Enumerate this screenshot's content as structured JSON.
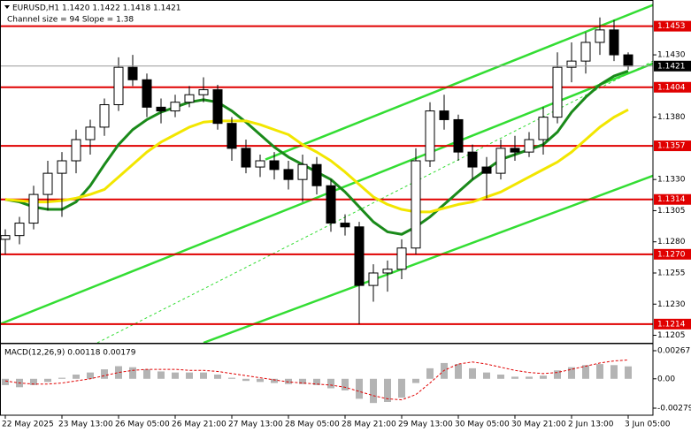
{
  "chart_data": {
    "type": "candlestick",
    "title": "EURUSD,H1  1.1420 1.1422 1.1418 1.1421",
    "subtitle": "Channel size = 94 Slope = 1.38",
    "xlim": [
      -0.375,
      45.75
    ],
    "ylim": [
      1.1199,
      1.1474
    ],
    "xticks": [
      {
        "value": 0,
        "label": "22 May 2025"
      },
      {
        "value": 4,
        "label": "23 May 13:00"
      },
      {
        "value": 8,
        "label": "26 May 05:00"
      },
      {
        "value": 12,
        "label": "26 May 21:00"
      },
      {
        "value": 16,
        "label": "27 May 13:00"
      },
      {
        "value": 20,
        "label": "28 May 05:00"
      },
      {
        "value": 24,
        "label": "28 May 21:00"
      },
      {
        "value": 28,
        "label": "29 May 13:00"
      },
      {
        "value": 32,
        "label": "30 May 05:00"
      },
      {
        "value": 36,
        "label": "30 May 21:00"
      },
      {
        "value": 40,
        "label": "2 Jun 13:00"
      },
      {
        "value": 44,
        "label": "3 Jun 05:00"
      }
    ],
    "yticks": [
      {
        "value": 1.143,
        "label": "1.1430"
      },
      {
        "value": 1.138,
        "label": "1.1380"
      },
      {
        "value": 1.133,
        "label": "1.1330"
      },
      1.1305,
      {
        "value": 1.128,
        "label": "1.1280"
      },
      1.1255,
      {
        "value": 1.123,
        "label": "1.1230"
      },
      1.1205
    ],
    "levels": [
      1.1453,
      1.1404,
      1.1357,
      1.1314,
      {
        "value": 1.127,
        "label": "1.1270"
      },
      1.1214
    ],
    "level_color": "#e00000",
    "current_price": 1.1421,
    "up_color": "#ffffff",
    "down_color": "#000000",
    "candles": {
      "open": [
        1.1282,
        1.1285,
        1.1295,
        1.1318,
        1.1335,
        1.1345,
        1.1362,
        1.1372,
        1.139,
        1.142,
        1.141,
        1.1388,
        1.1385,
        1.1392,
        1.1398,
        1.1402,
        1.1375,
        1.1355,
        1.134,
        1.1345,
        1.1338,
        1.133,
        1.1342,
        1.1325,
        1.1295,
        1.1292,
        1.1245,
        1.1255,
        1.1258,
        1.1275,
        1.1345,
        1.1385,
        1.1378,
        1.1352,
        1.134,
        1.1335,
        1.1355,
        1.1352,
        1.1362,
        1.138,
        1.142,
        1.1425,
        1.144,
        1.145,
        1.143
      ],
      "high": [
        1.129,
        1.13,
        1.1325,
        1.1345,
        1.1352,
        1.137,
        1.1378,
        1.1395,
        1.1428,
        1.143,
        1.1415,
        1.1395,
        1.1398,
        1.1405,
        1.1412,
        1.1406,
        1.138,
        1.1362,
        1.135,
        1.1352,
        1.1345,
        1.135,
        1.1348,
        1.133,
        1.1302,
        1.1296,
        1.1262,
        1.1265,
        1.1282,
        1.1355,
        1.1392,
        1.1398,
        1.1382,
        1.1358,
        1.1348,
        1.1362,
        1.1365,
        1.1368,
        1.1388,
        1.1432,
        1.144,
        1.1448,
        1.146,
        1.1458,
        1.1432
      ],
      "low": [
        1.127,
        1.1278,
        1.129,
        1.1305,
        1.13,
        1.1335,
        1.135,
        1.1365,
        1.1385,
        1.1405,
        1.138,
        1.1375,
        1.138,
        1.1388,
        1.1392,
        1.137,
        1.1345,
        1.1335,
        1.1332,
        1.133,
        1.1322,
        1.1312,
        1.1318,
        1.1288,
        1.1285,
        1.1214,
        1.1232,
        1.124,
        1.125,
        1.127,
        1.134,
        1.137,
        1.1345,
        1.133,
        1.1315,
        1.133,
        1.1345,
        1.1348,
        1.135,
        1.1375,
        1.1408,
        1.1415,
        1.143,
        1.1425,
        1.1418
      ],
      "close": [
        1.1285,
        1.1295,
        1.1318,
        1.1335,
        1.1345,
        1.1362,
        1.1372,
        1.139,
        1.142,
        1.141,
        1.1388,
        1.1385,
        1.1392,
        1.1398,
        1.1402,
        1.1375,
        1.1355,
        1.134,
        1.1345,
        1.1338,
        1.133,
        1.1342,
        1.1325,
        1.1295,
        1.1292,
        1.1245,
        1.1255,
        1.1258,
        1.1275,
        1.1345,
        1.1385,
        1.1378,
        1.1352,
        1.134,
        1.1335,
        1.1355,
        1.1352,
        1.1362,
        1.138,
        1.142,
        1.1425,
        1.144,
        1.145,
        1.143,
        1.1421
      ]
    },
    "moving_averages": [
      {
        "color": "#1a8a1a",
        "values": [
          1.1314,
          1.1312,
          1.1308,
          1.1306,
          1.1306,
          1.1312,
          1.1325,
          1.1342,
          1.1358,
          1.137,
          1.1378,
          1.1384,
          1.1388,
          1.1392,
          1.1394,
          1.1392,
          1.1385,
          1.1376,
          1.1366,
          1.1356,
          1.1348,
          1.1342,
          1.1336,
          1.133,
          1.132,
          1.1308,
          1.1296,
          1.1288,
          1.1286,
          1.1292,
          1.13,
          1.131,
          1.132,
          1.133,
          1.1338,
          1.1346,
          1.135,
          1.1354,
          1.1358,
          1.1368,
          1.1384,
          1.1396,
          1.1406,
          1.1413,
          1.1417
        ]
      },
      {
        "color": "#f2e600",
        "values": [
          1.1314,
          1.1313,
          1.1312,
          1.1312,
          1.1313,
          1.1315,
          1.1318,
          1.1322,
          1.1332,
          1.1342,
          1.1352,
          1.136,
          1.1366,
          1.1372,
          1.1376,
          1.1377,
          1.1377,
          1.1377,
          1.1374,
          1.137,
          1.1366,
          1.1358,
          1.1352,
          1.1345,
          1.1336,
          1.1326,
          1.1316,
          1.131,
          1.1306,
          1.1304,
          1.1304,
          1.1307,
          1.131,
          1.1312,
          1.1316,
          1.132,
          1.1326,
          1.1332,
          1.1338,
          1.1344,
          1.1352,
          1.1362,
          1.1372,
          1.138,
          1.1386
        ]
      }
    ],
    "channel_lines": [
      {
        "color": "#33dd33",
        "dashed": false,
        "x": [
          -0.375,
          45.75
        ],
        "y": [
          1.1214,
          1.1423
        ]
      },
      {
        "color": "#33dd33",
        "dashed": false,
        "x": [
          18.375,
          45.75
        ],
        "y": [
          1.1346,
          1.147
        ]
      },
      {
        "color": "#33dd33",
        "dashed": false,
        "x": [
          14,
          45.75
        ],
        "y": [
          1.1199,
          1.1333
        ]
      },
      {
        "color": "#33dd33",
        "dashed": true,
        "x": [
          6.5,
          45.75
        ],
        "y": [
          1.1199,
          1.1425
        ]
      }
    ],
    "macd": {
      "title": "MACD(12,26,9) 0.00118 0.00179",
      "ylim": [
        -0.00346,
        0.00334
      ],
      "yticks": [
        0.00267,
        {
          "value": 0,
          "label": "0.00"
        },
        -0.00279
      ],
      "histogram_color": "#b4b4b4",
      "signal_color": "#e00000",
      "histogram": [
        -0.0006,
        -0.0008,
        -0.0006,
        -0.0003,
        0.0001,
        0.0004,
        0.0006,
        0.0009,
        0.0012,
        0.0011,
        0.0009,
        0.0007,
        0.0006,
        0.0006,
        0.0006,
        0.0004,
        0.0001,
        -0.0002,
        -0.0003,
        -0.0004,
        -0.0005,
        -0.0005,
        -0.0006,
        -0.0009,
        -0.0011,
        -0.0019,
        -0.0023,
        -0.0022,
        -0.0018,
        -0.0004,
        0.001,
        0.0015,
        0.0014,
        0.001,
        0.0006,
        0.0004,
        0.0002,
        0.0002,
        0.0003,
        0.0008,
        0.0011,
        0.0013,
        0.0014,
        0.0013,
        0.00118
      ],
      "signal": [
        -0.0002,
        -0.0004,
        -0.0005,
        -0.0005,
        -0.0004,
        -0.0002,
        0,
        0.0003,
        0.0006,
        0.0008,
        0.0009,
        0.0009,
        0.0009,
        0.0008,
        0.0008,
        0.0007,
        0.0005,
        0.0003,
        0.0001,
        -0.0001,
        -0.0003,
        -0.0004,
        -0.0005,
        -0.0006,
        -0.0008,
        -0.0012,
        -0.0016,
        -0.0019,
        -0.002,
        -0.0015,
        -0.0004,
        0.0008,
        0.0014,
        0.0016,
        0.0014,
        0.0011,
        0.0008,
        0.0006,
        0.0005,
        0.0006,
        0.0009,
        0.0012,
        0.0015,
        0.0017,
        0.00179
      ]
    }
  }
}
